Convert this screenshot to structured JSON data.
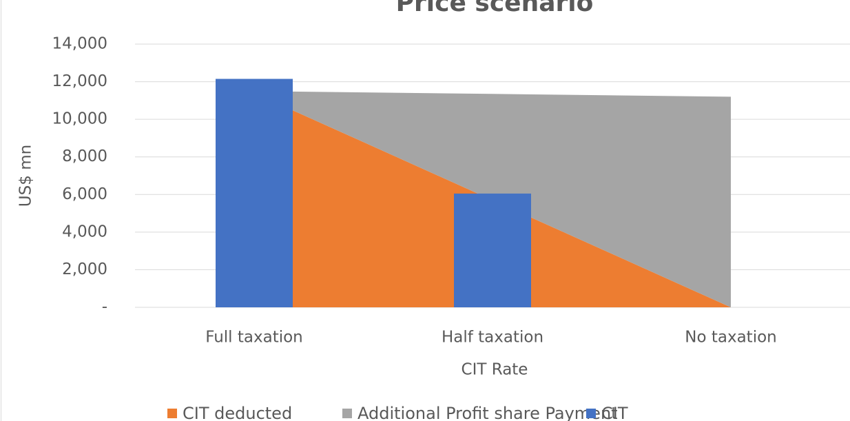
{
  "chart_data": {
    "type": "combo",
    "title": "Price scenario",
    "x_label": "CIT Rate",
    "y_label": "US$ mn",
    "categories": [
      "Full taxation",
      "Half taxation",
      "No taxation"
    ],
    "series": [
      {
        "name": "CIT deducted",
        "type": "area",
        "stack": true,
        "color": "#ED7D31",
        "values": [
          11400,
          5700,
          0
        ]
      },
      {
        "name": "Additional Profit share Payment",
        "type": "area",
        "stack": true,
        "color": "#A5A5A5",
        "values": [
          100,
          5650,
          11200
        ]
      },
      {
        "name": "CIT",
        "type": "bar",
        "color": "#4472C4",
        "values": [
          12150,
          6050,
          0
        ]
      }
    ],
    "ylim": [
      0,
      14000
    ],
    "yticks": [
      {
        "value": 0,
        "label": "-"
      },
      {
        "value": 2000,
        "label": "2,000"
      },
      {
        "value": 4000,
        "label": "4,000"
      },
      {
        "value": 6000,
        "label": "6,000"
      },
      {
        "value": 8000,
        "label": "8,000"
      },
      {
        "value": 10000,
        "label": "10,000"
      },
      {
        "value": 12000,
        "label": "12,000"
      },
      {
        "value": 14000,
        "label": "14,000"
      }
    ],
    "grid": true,
    "legend": "bottom"
  }
}
